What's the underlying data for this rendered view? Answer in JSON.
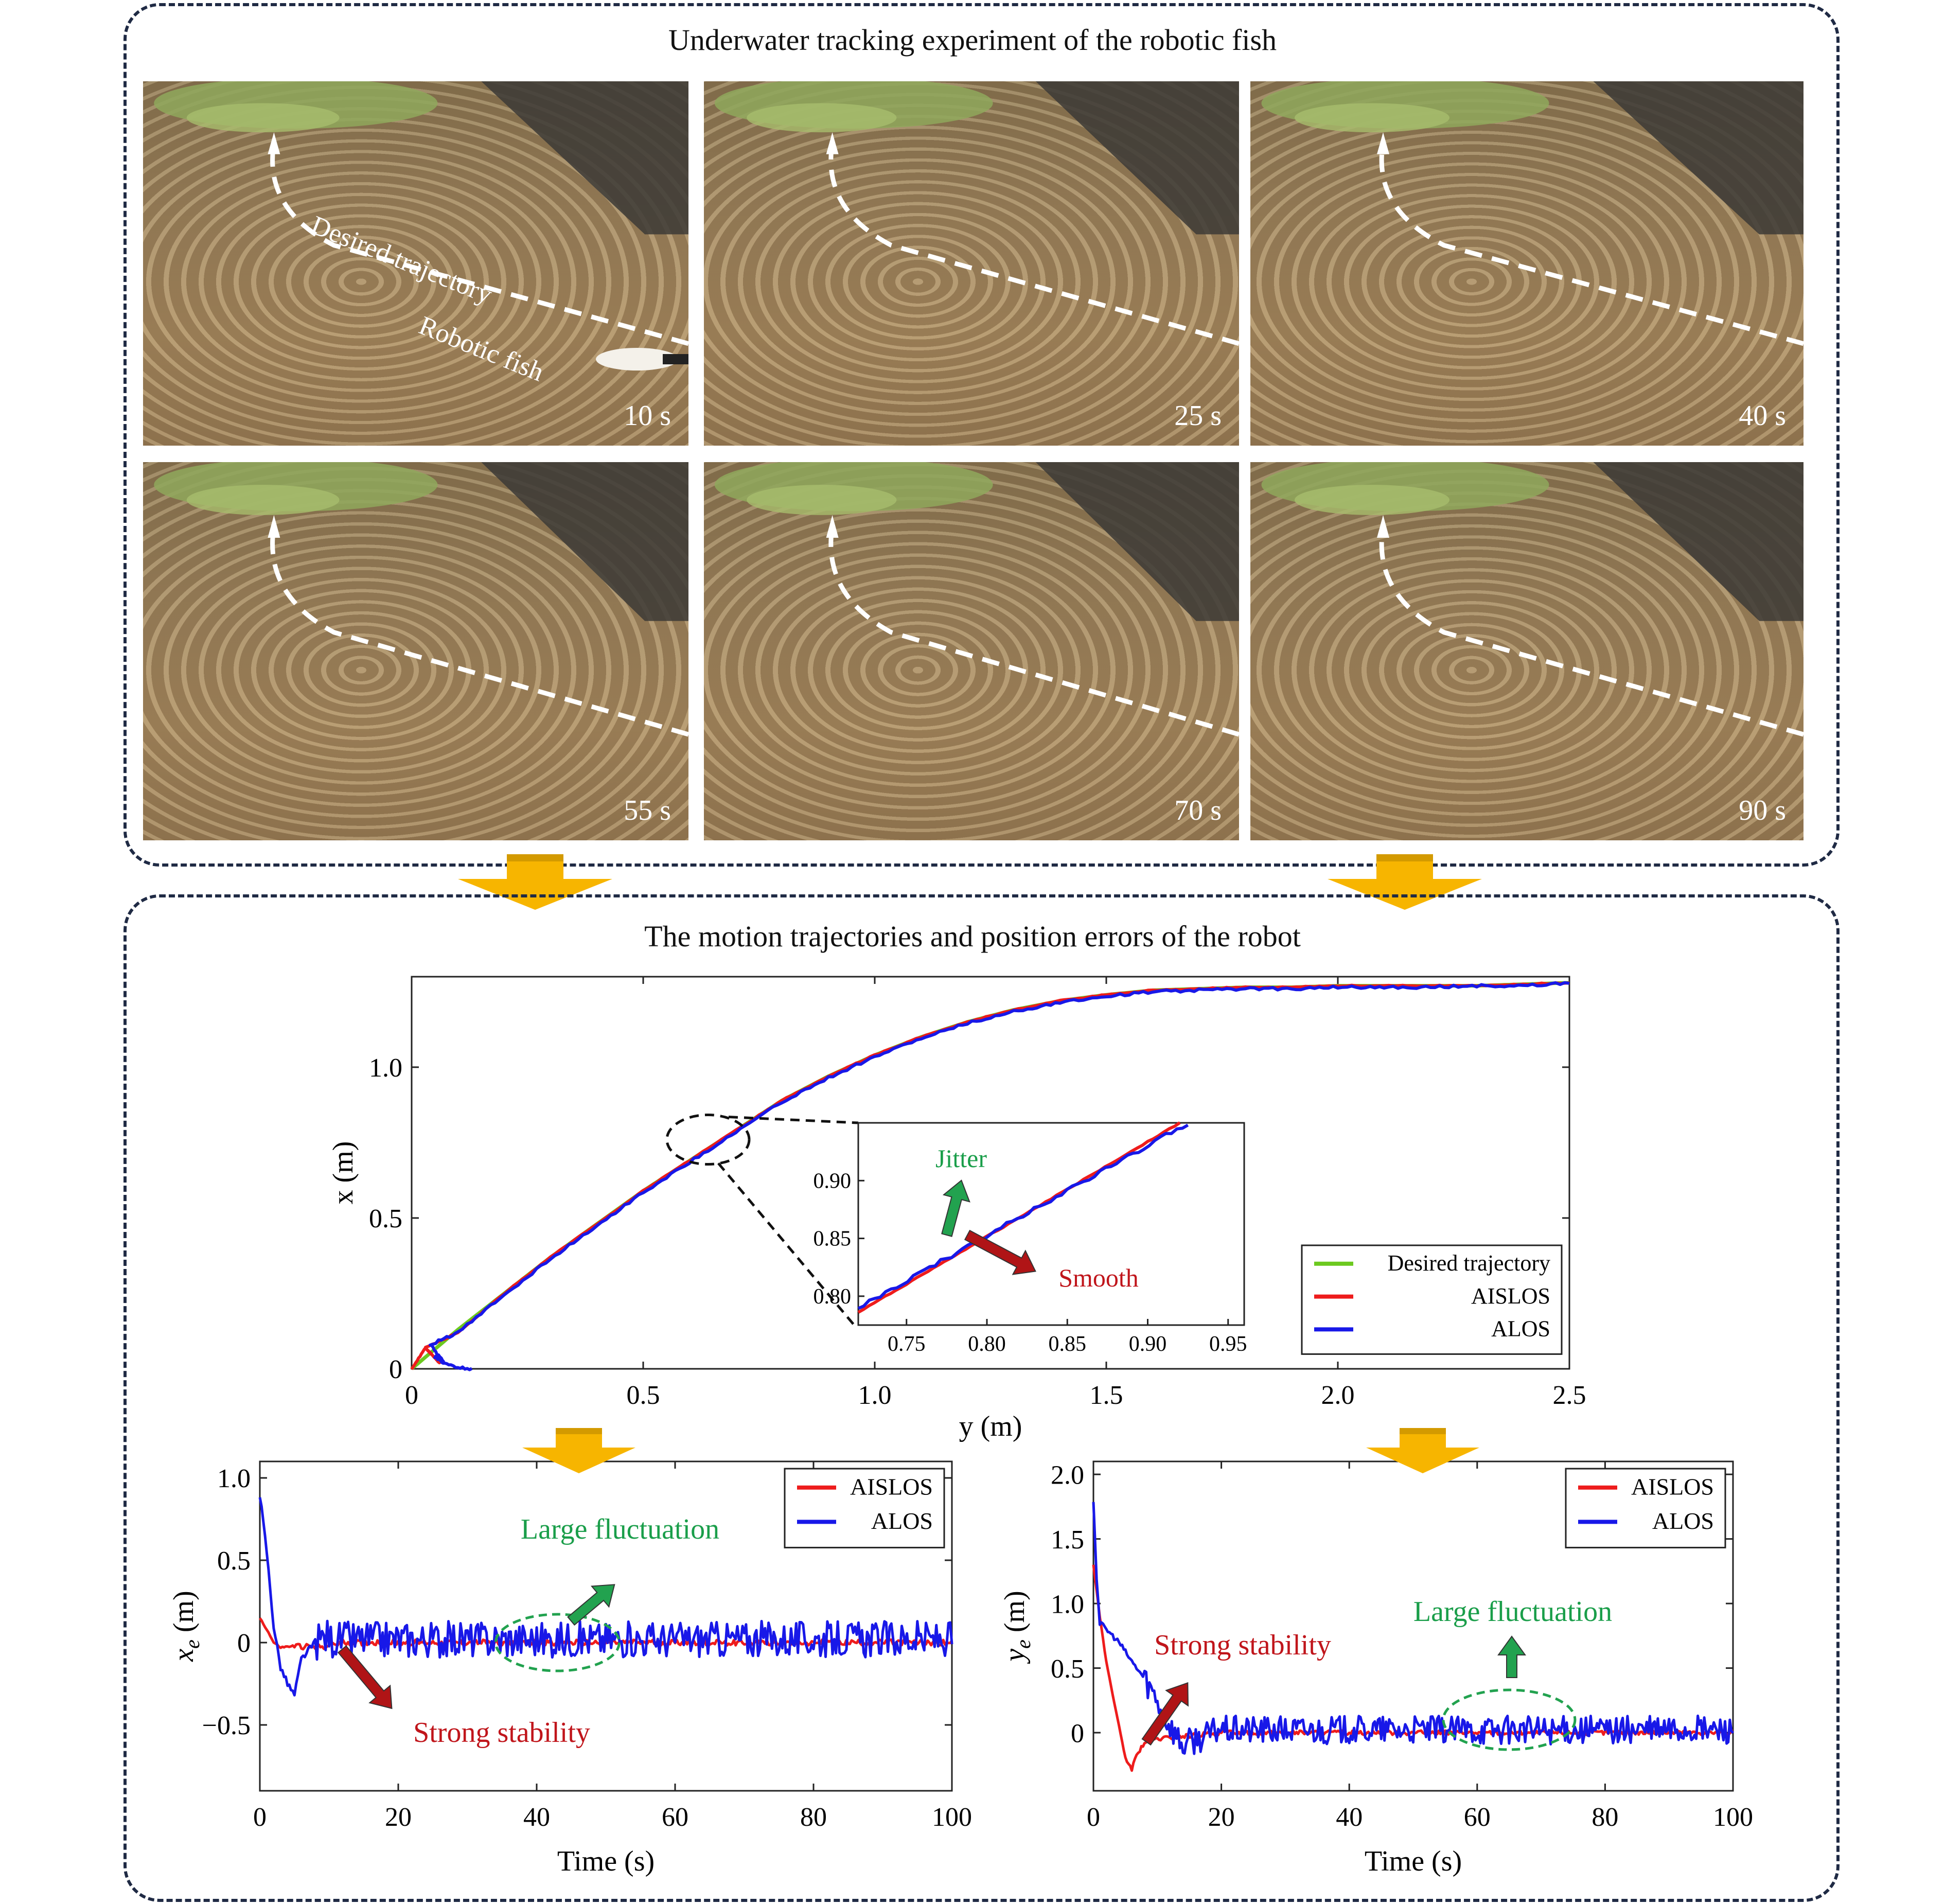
{
  "top_panel": {
    "title": "Underwater tracking experiment of the robotic fish",
    "photos": [
      {
        "time": "10 s"
      },
      {
        "time": "25 s"
      },
      {
        "time": "40 s"
      },
      {
        "time": "55 s"
      },
      {
        "time": "70 s"
      },
      {
        "time": "90 s"
      }
    ],
    "desired_label": "Desired trajectory",
    "fish_label": "Robotic fish"
  },
  "bottom_panel": {
    "title": "The motion trajectories and position errors of the robot"
  },
  "colors": {
    "desired": "#6cc91f",
    "aislos": "#ee1c1c",
    "alos": "#1818e8",
    "green_text": "#1a9e4a",
    "red_text": "#c0151b",
    "arrow_fill": "#f7b500",
    "frame": "#1f2a44"
  },
  "chart_data": [
    {
      "id": "trajectory",
      "type": "line",
      "xlabel": "y (m)",
      "ylabel": "x (m)",
      "xlim": [
        0,
        2.5
      ],
      "ylim": [
        0,
        1.3
      ],
      "xticks": [
        "0",
        "0.5",
        "1.0",
        "1.5",
        "2.0",
        "2.5"
      ],
      "yticks": [
        "0",
        "0.5",
        "1.0"
      ],
      "legend": [
        "Desired trajectory",
        "AISLOS",
        "ALOS"
      ],
      "legend_position": "bottom-right",
      "series": [
        {
          "name": "Desired trajectory",
          "color": "#6cc91f",
          "x": [
            0,
            0.1,
            0.2,
            0.3,
            0.4,
            0.5,
            0.6,
            0.7,
            0.8,
            0.9,
            1.0,
            1.1,
            1.2,
            1.3,
            1.4,
            1.5,
            1.6,
            1.7,
            1.8,
            1.9,
            2.0,
            2.1,
            2.2,
            2.3,
            2.4,
            2.5
          ],
          "y": [
            0,
            0.13,
            0.25,
            0.37,
            0.48,
            0.59,
            0.69,
            0.79,
            0.89,
            0.97,
            1.04,
            1.1,
            1.15,
            1.19,
            1.22,
            1.24,
            1.255,
            1.26,
            1.265,
            1.265,
            1.27,
            1.27,
            1.27,
            1.27,
            1.275,
            1.28
          ]
        },
        {
          "name": "AISLOS",
          "color": "#ee1c1c",
          "x": [
            0,
            0.03,
            0.06,
            0.03,
            0.1,
            0.2,
            0.3,
            0.4,
            0.5,
            0.6,
            0.7,
            0.8,
            0.9,
            1.0,
            1.1,
            1.2,
            1.3,
            1.4,
            1.5,
            1.6,
            1.7,
            1.8,
            1.9,
            2.0,
            2.1,
            2.2,
            2.3,
            2.4,
            2.5
          ],
          "y": [
            0,
            0.07,
            0.02,
            0.07,
            0.12,
            0.25,
            0.37,
            0.48,
            0.59,
            0.69,
            0.79,
            0.89,
            0.97,
            1.04,
            1.1,
            1.15,
            1.19,
            1.22,
            1.24,
            1.255,
            1.26,
            1.265,
            1.265,
            1.27,
            1.27,
            1.27,
            1.27,
            1.275,
            1.28
          ]
        },
        {
          "name": "ALOS",
          "color": "#1818e8",
          "x": [
            0.13,
            0.08,
            0.05,
            0.07,
            0.04,
            0.1,
            0.2,
            0.3,
            0.4,
            0.5,
            0.6,
            0.7,
            0.8,
            0.9,
            1.0,
            1.1,
            1.2,
            1.3,
            1.4,
            1.5,
            1.6,
            1.7,
            1.8,
            1.9,
            2.0,
            2.1,
            2.2,
            2.3,
            2.4,
            2.5
          ],
          "y": [
            0,
            0.01,
            0.04,
            0.02,
            0.08,
            0.12,
            0.245,
            0.365,
            0.475,
            0.585,
            0.685,
            0.785,
            0.885,
            0.965,
            1.035,
            1.095,
            1.145,
            1.185,
            1.215,
            1.235,
            1.25,
            1.255,
            1.26,
            1.26,
            1.265,
            1.265,
            1.265,
            1.27,
            1.27,
            1.278
          ]
        }
      ],
      "inset": {
        "xlim": [
          0.72,
          0.96
        ],
        "ylim": [
          0.775,
          0.95
        ],
        "xticks": [
          "0.75",
          "0.80",
          "0.85",
          "0.90",
          "0.95"
        ],
        "yticks": [
          "0.80",
          "0.85",
          "0.90"
        ],
        "annotations": [
          {
            "text": "Jitter",
            "color": "#1a9e4a"
          },
          {
            "text": "Smooth",
            "color": "#c0151b"
          }
        ],
        "series": [
          {
            "name": "AISLOS",
            "x": [
              0.72,
              0.92
            ],
            "y": [
              0.786,
              0.95
            ]
          },
          {
            "name": "ALOS",
            "x": [
              0.72,
              0.925
            ],
            "y": [
              0.79,
              0.95
            ]
          }
        ]
      }
    },
    {
      "id": "x_error",
      "type": "line",
      "xlabel": "Time (s)",
      "ylabel": "x_e (m)",
      "xlim": [
        0,
        100
      ],
      "ylim": [
        -0.9,
        1.1
      ],
      "xticks": [
        "0",
        "20",
        "40",
        "60",
        "80",
        "100"
      ],
      "yticks": [
        "1.0",
        "0.5",
        "0",
        "−0.5"
      ],
      "legend": [
        "AISLOS",
        "ALOS"
      ],
      "legend_position": "top-right",
      "annotations": [
        {
          "text": "Large fluctuation",
          "color": "#1a9e4a"
        },
        {
          "text": "Strong stability",
          "color": "#c0151b"
        }
      ],
      "series": [
        {
          "name": "AISLOS",
          "x": [
            0,
            1,
            2,
            3,
            5,
            8,
            12,
            20,
            40,
            60,
            80,
            100
          ],
          "y": [
            0.15,
            0.08,
            0.0,
            -0.03,
            -0.02,
            -0.03,
            0.0,
            0.0,
            0.0,
            0.0,
            0.0,
            0.0
          ]
        },
        {
          "name": "ALOS",
          "x": [
            0,
            1,
            2,
            3,
            4,
            5,
            6,
            8,
            10
          ],
          "y": [
            0.9,
            0.55,
            0.1,
            -0.15,
            -0.25,
            -0.32,
            -0.1,
            0.0,
            0.05
          ]
        }
      ]
    },
    {
      "id": "y_error",
      "type": "line",
      "xlabel": "Time (s)",
      "ylabel": "y_e (m)",
      "xlim": [
        0,
        100
      ],
      "ylim": [
        -0.45,
        2.1
      ],
      "xticks": [
        "0",
        "20",
        "40",
        "60",
        "80",
        "100"
      ],
      "yticks": [
        "2.0",
        "1.5",
        "1.0",
        "0.5",
        "0"
      ],
      "legend": [
        "AISLOS",
        "ALOS"
      ],
      "legend_position": "top-right",
      "annotations": [
        {
          "text": "Strong stability",
          "color": "#c0151b"
        },
        {
          "text": "Large fluctuation",
          "color": "#1a9e4a"
        }
      ],
      "series": [
        {
          "name": "AISLOS",
          "x": [
            0,
            1,
            2,
            3,
            4,
            5,
            6,
            7,
            8,
            10,
            14,
            20,
            40,
            60,
            80,
            100
          ],
          "y": [
            1.3,
            0.9,
            0.55,
            0.3,
            0.05,
            -0.2,
            -0.28,
            -0.15,
            -0.08,
            -0.05,
            -0.03,
            0.0,
            0.0,
            0.0,
            0.0,
            0.0
          ]
        },
        {
          "name": "ALOS",
          "x": [
            0,
            0.5,
            1,
            2,
            4,
            6,
            8,
            10,
            12,
            14,
            16,
            18,
            20
          ],
          "y": [
            1.8,
            1.2,
            0.85,
            0.8,
            0.7,
            0.55,
            0.42,
            0.25,
            0.05,
            -0.1,
            -0.05,
            -0.02,
            0.05
          ]
        }
      ]
    }
  ]
}
